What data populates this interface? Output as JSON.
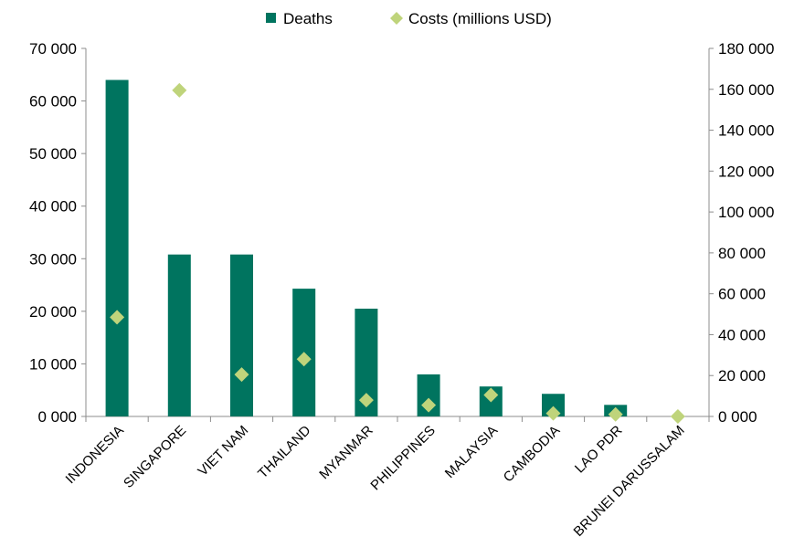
{
  "chart_data": {
    "type": "bar",
    "categories": [
      "INDONESIA",
      "SINGAPORE",
      "VIET NAM",
      "THAILAND",
      "MYANMAR",
      "PHILIPPINES",
      "MALAYSIA",
      "CAMBODIA",
      "LAO PDR",
      "BRUNEI DARUSSALAM"
    ],
    "series": [
      {
        "name": "Deaths",
        "type": "bar",
        "axis": "left",
        "color": "#00745F",
        "values": [
          64000,
          30800,
          30800,
          24300,
          20500,
          8000,
          5700,
          4300,
          2200,
          0
        ]
      },
      {
        "name": "Costs (millions USD)",
        "type": "scatter",
        "marker": "diamond",
        "axis": "right",
        "color": "#BFD47B",
        "values": [
          48500,
          159500,
          20500,
          28000,
          8000,
          5500,
          10500,
          1500,
          1000,
          0
        ]
      }
    ],
    "y_left": {
      "range": [
        0,
        70000
      ],
      "ticks": [
        "0 000",
        "10 000",
        "20 000",
        "30 000",
        "40 000",
        "50 000",
        "60 000",
        "70 000"
      ]
    },
    "y_right": {
      "range": [
        0,
        180000
      ],
      "ticks": [
        "0 000",
        "20 000",
        "40 000",
        "60 000",
        "80 000",
        "100 000",
        "120 000",
        "140 000",
        "160 000",
        "180 000"
      ]
    },
    "legend_position": "top-center",
    "grid": false
  }
}
